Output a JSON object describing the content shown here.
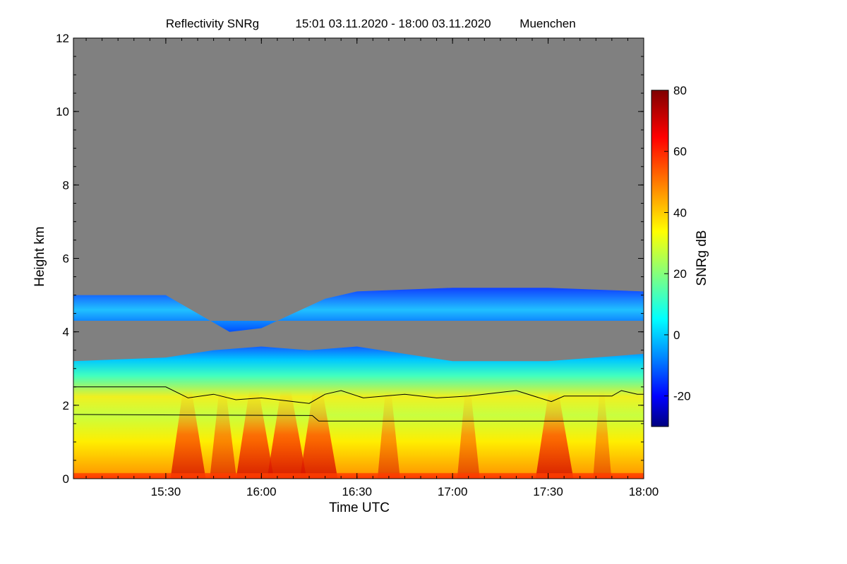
{
  "chart_data": {
    "type": "heatmap",
    "title": "Reflectivity SNRg",
    "time_range": "15:01 03.11.2020 - 18:00 03.11.2020",
    "location": "Muenchen",
    "xlabel": "Time UTC",
    "ylabel": "Height km",
    "x_ticks": [
      "15:30",
      "16:00",
      "16:30",
      "17:00",
      "17:30",
      "18:00"
    ],
    "y_ticks": [
      0,
      2,
      4,
      6,
      8,
      10,
      12
    ],
    "xlim": [
      "15:01",
      "18:00"
    ],
    "ylim": [
      0,
      12
    ],
    "colorbar": {
      "label": "SNRg dB",
      "ticks": [
        -20,
        0,
        20,
        40,
        60,
        80
      ],
      "range": [
        -30,
        80
      ],
      "colormap": [
        "#00007f",
        "#0000ff",
        "#0080ff",
        "#00ffff",
        "#80ff80",
        "#ffff00",
        "#ff8000",
        "#ff0000",
        "#7f0000"
      ]
    },
    "no_data_color": "#808080",
    "echo_top_km": [
      {
        "t": "15:01",
        "h": 5.0
      },
      {
        "t": "15:30",
        "h": 5.0
      },
      {
        "t": "15:50",
        "h": 4.0
      },
      {
        "t": "16:00",
        "h": 4.1
      },
      {
        "t": "16:20",
        "h": 4.9
      },
      {
        "t": "16:30",
        "h": 5.1
      },
      {
        "t": "17:00",
        "h": 5.2
      },
      {
        "t": "17:30",
        "h": 5.2
      },
      {
        "t": "18:00",
        "h": 5.1
      }
    ],
    "upper_layer_bottom_km": 4.3,
    "lower_cloud_top_km": [
      {
        "t": "15:01",
        "h": 3.2
      },
      {
        "t": "15:30",
        "h": 3.3
      },
      {
        "t": "15:45",
        "h": 3.5
      },
      {
        "t": "16:00",
        "h": 3.6
      },
      {
        "t": "16:15",
        "h": 3.5
      },
      {
        "t": "16:30",
        "h": 3.6
      },
      {
        "t": "17:00",
        "h": 3.2
      },
      {
        "t": "17:30",
        "h": 3.2
      },
      {
        "t": "18:00",
        "h": 3.4
      }
    ],
    "fall_streaks": [
      {
        "t": "15:37",
        "peak_db": 65
      },
      {
        "t": "15:48",
        "peak_db": 55
      },
      {
        "t": "15:58",
        "peak_db": 68
      },
      {
        "t": "16:08",
        "peak_db": 70
      },
      {
        "t": "16:18",
        "peak_db": 68
      },
      {
        "t": "16:40",
        "peak_db": 50
      },
      {
        "t": "17:05",
        "peak_db": 50
      },
      {
        "t": "17:32",
        "peak_db": 68
      },
      {
        "t": "17:47",
        "peak_db": 45
      }
    ],
    "line_upper_km": [
      {
        "t": "15:01",
        "h": 2.5
      },
      {
        "t": "15:30",
        "h": 2.5
      },
      {
        "t": "15:37",
        "h": 2.2
      },
      {
        "t": "15:45",
        "h": 2.3
      },
      {
        "t": "15:52",
        "h": 2.15
      },
      {
        "t": "16:00",
        "h": 2.2
      },
      {
        "t": "16:10",
        "h": 2.1
      },
      {
        "t": "16:15",
        "h": 2.05
      },
      {
        "t": "16:20",
        "h": 2.3
      },
      {
        "t": "16:25",
        "h": 2.4
      },
      {
        "t": "16:32",
        "h": 2.2
      },
      {
        "t": "16:45",
        "h": 2.3
      },
      {
        "t": "16:55",
        "h": 2.2
      },
      {
        "t": "17:05",
        "h": 2.25
      },
      {
        "t": "17:20",
        "h": 2.4
      },
      {
        "t": "17:31",
        "h": 2.1
      },
      {
        "t": "17:35",
        "h": 2.25
      },
      {
        "t": "17:50",
        "h": 2.25
      },
      {
        "t": "17:53",
        "h": 2.4
      },
      {
        "t": "17:58",
        "h": 2.3
      },
      {
        "t": "18:00",
        "h": 2.3
      }
    ],
    "line_lower_km": [
      {
        "t": "15:01",
        "h": 1.75
      },
      {
        "t": "16:16",
        "h": 1.72
      },
      {
        "t": "16:18",
        "h": 1.57
      },
      {
        "t": "18:00",
        "h": 1.57
      }
    ]
  }
}
